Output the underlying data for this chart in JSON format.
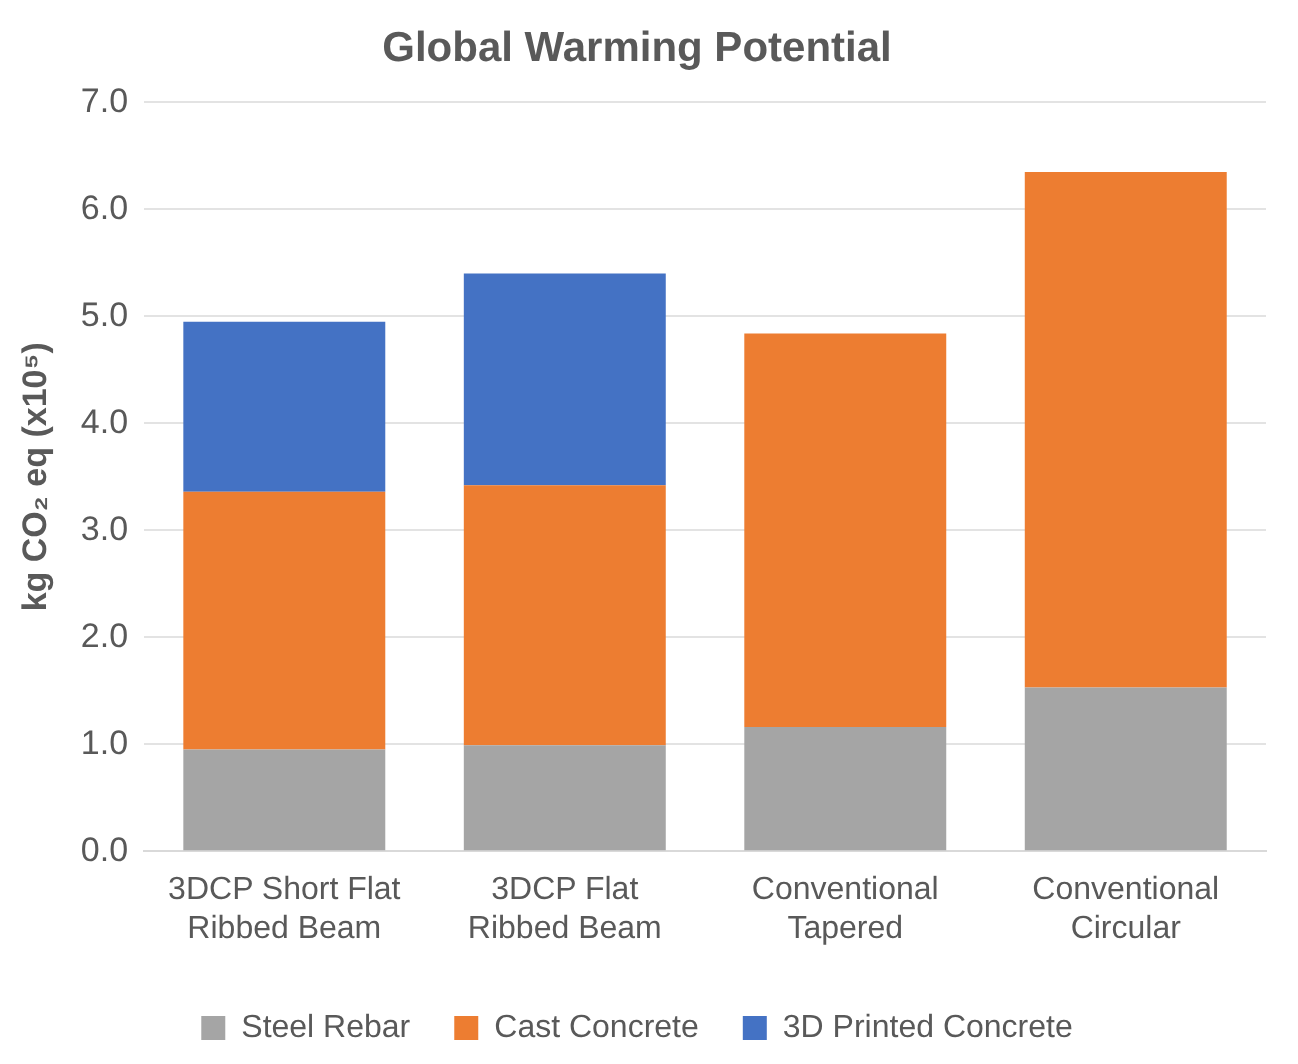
{
  "chart_data": {
    "type": "bar",
    "title": "Global Warming Potential",
    "ylabel": "kg CO₂ eq (x10⁵)",
    "categories": [
      "3DCP Short Flat Ribbed Beam",
      "3DCP Flat Ribbed Beam",
      "Conventional Tapered",
      "Conventional Circular"
    ],
    "stacked": true,
    "series": [
      {
        "name": "Steel Rebar",
        "color": "#a5a5a5",
        "values": [
          0.95,
          0.99,
          1.16,
          1.53
        ]
      },
      {
        "name": "Cast Concrete",
        "color": "#ed7d31",
        "values": [
          2.41,
          2.43,
          3.68,
          4.82
        ]
      },
      {
        "name": "3D Printed Concrete",
        "color": "#4472c4",
        "values": [
          1.59,
          1.98,
          null,
          null
        ]
      }
    ],
    "ylim": [
      0,
      7
    ],
    "yticks": [
      {
        "value": 0,
        "label": "0.0"
      },
      {
        "value": 1,
        "label": "1.0"
      },
      {
        "value": 2,
        "label": "2.0"
      },
      {
        "value": 3,
        "label": "3.0"
      },
      {
        "value": 4,
        "label": "4.0"
      },
      {
        "value": 5,
        "label": "5.0"
      },
      {
        "value": 6,
        "label": "6.0"
      },
      {
        "value": 7,
        "label": "7.0"
      }
    ],
    "grid": "y",
    "legend": "bottom"
  }
}
